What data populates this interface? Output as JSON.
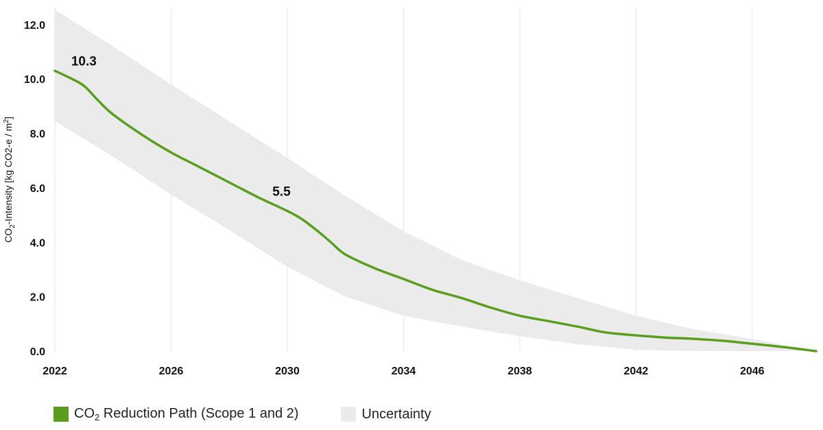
{
  "chart_data": {
    "type": "line",
    "title": "",
    "xlabel": "",
    "ylabel": {
      "prefix": "CO",
      "subscript": "2",
      "rest": "-Intensity [kg CO2-e / m",
      "sup": "2",
      "end": "]"
    },
    "xlim": [
      2022,
      2048.2
    ],
    "ylim": [
      0,
      12.6
    ],
    "x_ticks": [
      2022,
      2026,
      2030,
      2034,
      2038,
      2042,
      2046
    ],
    "y_ticks": [
      "0.0",
      "2.0",
      "4.0",
      "6.0",
      "8.0",
      "10.0",
      "12.0"
    ],
    "grid": "vertical",
    "series": [
      {
        "name": "CO2 Reduction Path (Scope 1 and 2)",
        "color": "#5a9e1e",
        "x": [
          2022,
          2022.5,
          2023,
          2023.5,
          2024,
          2025,
          2026,
          2027,
          2028,
          2029,
          2030,
          2030.5,
          2031,
          2031.5,
          2032,
          2033,
          2034,
          2035,
          2036,
          2037,
          2038,
          2039,
          2040,
          2040.5,
          2041,
          2042,
          2043,
          2044,
          2045,
          2046,
          2047,
          2048.2
        ],
        "y": [
          10.3,
          10.05,
          9.75,
          9.2,
          8.7,
          7.95,
          7.3,
          6.75,
          6.2,
          5.65,
          5.15,
          4.85,
          4.45,
          4.0,
          3.55,
          3.05,
          2.65,
          2.25,
          1.95,
          1.6,
          1.3,
          1.1,
          0.9,
          0.78,
          0.68,
          0.58,
          0.5,
          0.45,
          0.38,
          0.27,
          0.16,
          0.0
        ]
      }
    ],
    "uncertainty": {
      "name": "Uncertainty",
      "color": "#ebebeb",
      "x": [
        2022,
        2024,
        2026,
        2028,
        2030,
        2032,
        2034,
        2036,
        2038,
        2040,
        2042,
        2044,
        2046,
        2048.2
      ],
      "upper": [
        12.55,
        11.2,
        9.8,
        8.45,
        7.1,
        5.7,
        4.4,
        3.35,
        2.6,
        1.95,
        1.3,
        0.8,
        0.45,
        0.0
      ],
      "lower": [
        8.45,
        7.15,
        5.75,
        4.45,
        3.1,
        2.0,
        1.3,
        0.9,
        0.55,
        0.25,
        0.05,
        0.0,
        0.0,
        0.0
      ]
    },
    "data_labels": [
      {
        "x": 2023,
        "y": 10.3,
        "text": "10.3"
      },
      {
        "x": 2029.8,
        "y": 5.5,
        "text": "5.5"
      }
    ],
    "legend": {
      "position": "bottom-left",
      "items": [
        {
          "prefix": "CO",
          "subscript": "2",
          "rest": " Reduction Path (Scope 1 and 2)",
          "color": "#5a9e1e"
        },
        {
          "label": "Uncertainty",
          "color": "#ebebeb"
        }
      ]
    }
  }
}
